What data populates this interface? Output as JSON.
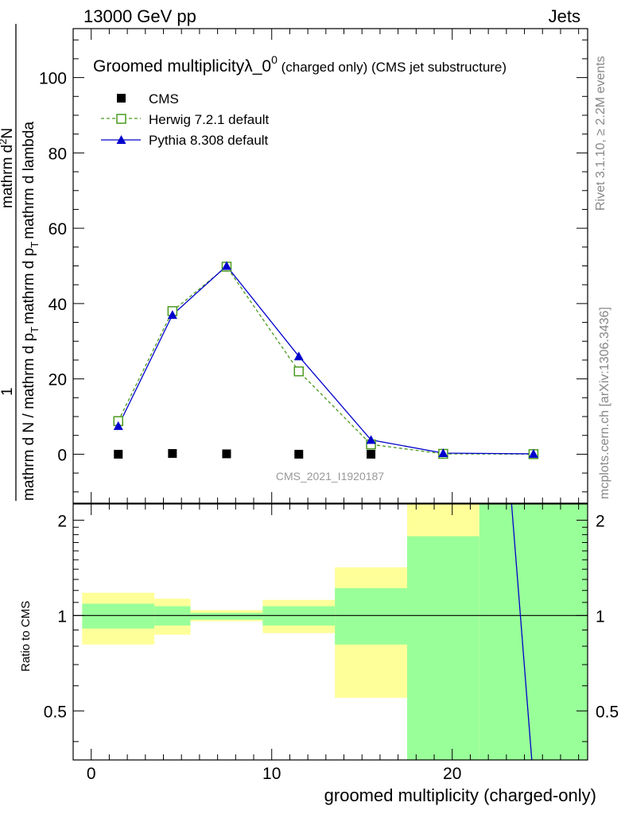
{
  "header": {
    "left": "13000 GeV pp",
    "right": "Jets"
  },
  "side_labels": {
    "rivet": "Rivet 3.1.10, ≥ 2.2M events",
    "mcplots": "mcplots.cern.ch [arXiv:1306.3436]"
  },
  "chart_data": [
    {
      "type": "scatter",
      "title_main": "Groomed multiplicityλ_0",
      "title_sup": "0",
      "title_small": " (charged only) (CMS jet substructure)",
      "watermark": "CMS_2021_I1920187",
      "ylabel_numerator": "mathrm d",
      "ylabel_numerator_sup": "2",
      "ylabel_numerator_tail": "N",
      "ylabel_prefix": "1",
      "ylabel_denom_left": "mathrm d N / mathrm d p",
      "ylabel_denom_sub": "T",
      "ylabel_denom_right": "mathrm d p",
      "ylabel_denom_sub2": "T",
      "ylabel_denom_end": "mathrm d lambda",
      "ylim": [
        -13,
        113
      ],
      "yticks": [
        0,
        20,
        40,
        60,
        80,
        100
      ],
      "xlim": [
        -1,
        27.5
      ],
      "legend_position": "top-left",
      "series": [
        {
          "name": "CMS",
          "color": "#000000",
          "marker": "square-filled",
          "x": [
            1.5,
            4.5,
            7.5,
            11.5,
            15.5,
            19.5,
            24.5
          ],
          "y": [
            0,
            0.2,
            0.1,
            0,
            0,
            0,
            0
          ]
        },
        {
          "name": "Herwig 7.2.1 default",
          "color": "#4a9a1e",
          "marker": "square-open",
          "line": "dashed",
          "x": [
            1.5,
            4.5,
            7.5,
            11.5,
            15.5,
            19.5,
            24.5
          ],
          "y": [
            8.8,
            38.0,
            49.8,
            22.0,
            2.6,
            0.1,
            0.02
          ]
        },
        {
          "name": "Pythia 8.308 default",
          "color": "#0000cc",
          "marker": "triangle-filled",
          "line": "solid",
          "x": [
            1.5,
            4.5,
            7.5,
            11.5,
            15.5,
            19.5,
            24.5
          ],
          "y": [
            7.5,
            37.0,
            50.0,
            26.0,
            3.8,
            0.3,
            0.1
          ]
        }
      ]
    },
    {
      "type": "area",
      "ylabel": "Ratio to CMS",
      "xlabel": "groomed multiplicity (charged-only)",
      "ylim": [
        0.35,
        2.25
      ],
      "yticks": [
        0.5,
        1,
        2
      ],
      "xlim": [
        -1,
        27.5
      ],
      "xticks": [
        0,
        10,
        20
      ],
      "reference": 1,
      "bands": [
        {
          "x0": -0.5,
          "x1": 3.5,
          "inner": [
            0.91,
            1.09
          ],
          "outer": [
            0.81,
            1.18
          ]
        },
        {
          "x0": 3.5,
          "x1": 5.5,
          "inner": [
            0.93,
            1.07
          ],
          "outer": [
            0.87,
            1.13
          ]
        },
        {
          "x0": 5.5,
          "x1": 9.5,
          "inner": [
            0.97,
            1.02
          ],
          "outer": [
            0.96,
            1.04
          ]
        },
        {
          "x0": 9.5,
          "x1": 13.5,
          "inner": [
            0.93,
            1.07
          ],
          "outer": [
            0.88,
            1.12
          ]
        },
        {
          "x0": 13.5,
          "x1": 17.5,
          "inner": [
            0.81,
            1.22
          ],
          "outer": [
            0.55,
            1.42
          ]
        },
        {
          "x0": 17.5,
          "x1": 21.5,
          "inner": [
            0.3,
            1.78
          ],
          "outer": [
            0.3,
            2.6
          ]
        },
        {
          "x0": 21.5,
          "x1": 27.5,
          "inner": [
            0.3,
            2.6
          ],
          "outer": [
            0.3,
            2.6
          ]
        }
      ],
      "pythia_line": {
        "x": [
          23.2,
          24.5
        ],
        "y": [
          2.6,
          0.3
        ]
      }
    }
  ]
}
